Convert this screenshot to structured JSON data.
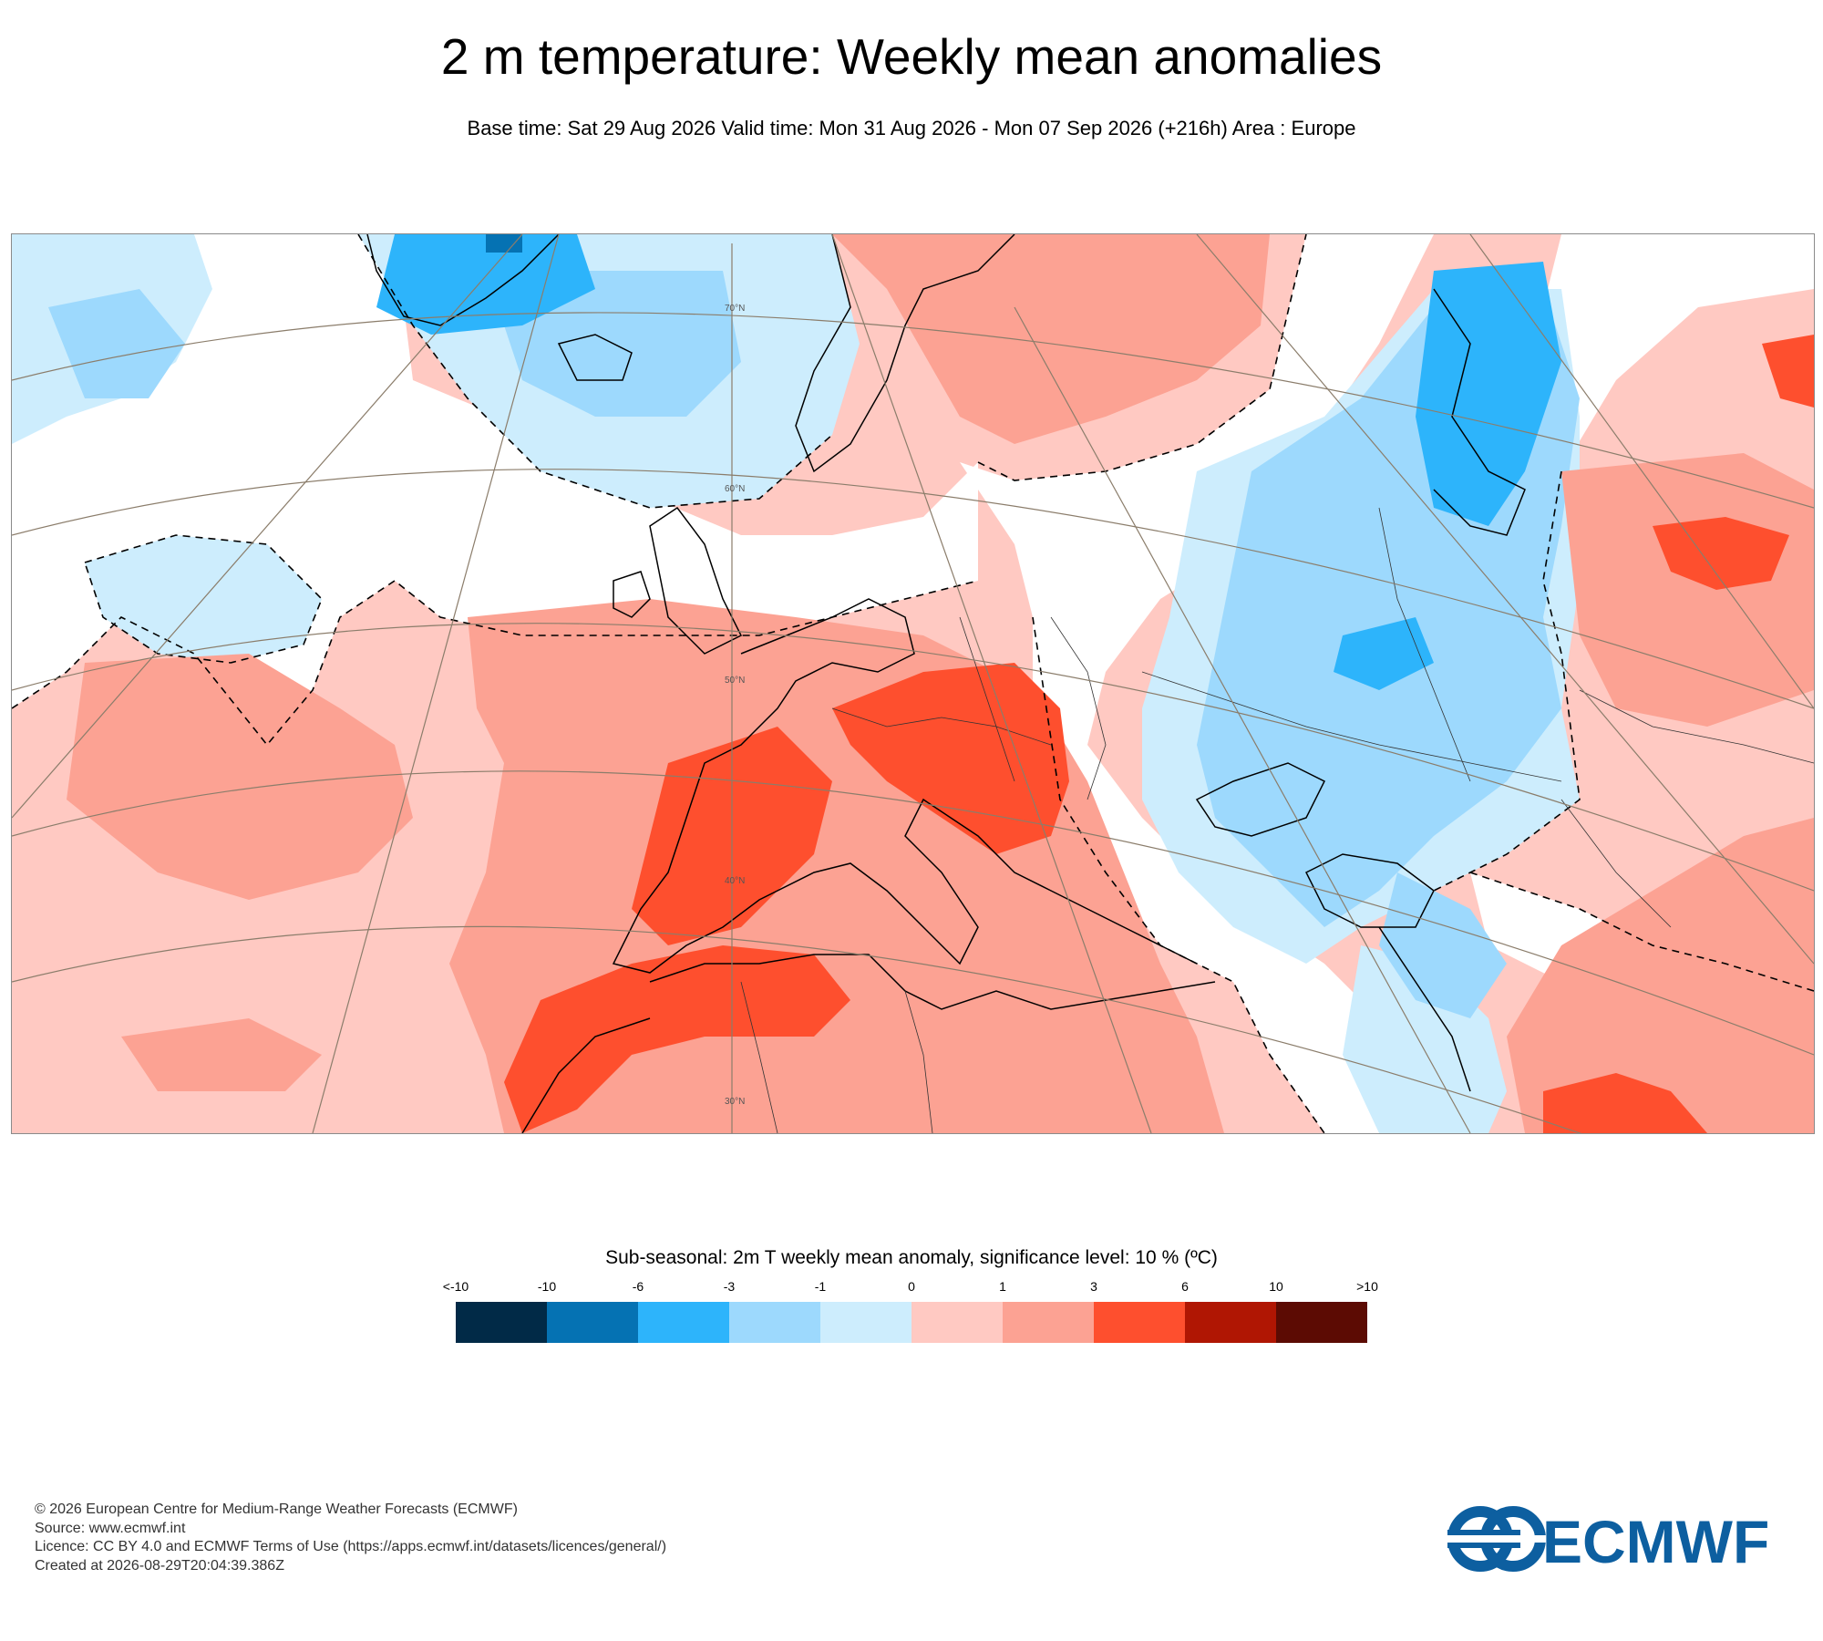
{
  "title": "2 m temperature: Weekly mean anomalies",
  "subtitle": "Base time: Sat 29 Aug 2026 Valid time: Mon 31 Aug 2026 - Mon 07 Sep 2026 (+216h) Area : Europe",
  "map": {
    "area": "Europe",
    "latitude_labels": [
      "70°N",
      "60°N",
      "50°N",
      "40°N",
      "30°N"
    ]
  },
  "legend": {
    "title": "Sub-seasonal: 2m T weekly mean anomaly, significance level: 10 % (ºC)",
    "ticks": [
      "<-10",
      "-10",
      "-6",
      "-3",
      "-1",
      "0",
      "1",
      "3",
      "6",
      "10",
      ">10"
    ],
    "colors": [
      "#012a47",
      "#0572b3",
      "#2db4fb",
      "#9dd9fd",
      "#cdedfd",
      "#ffc9c2",
      "#fca293",
      "#fe4f2e",
      "#b01603",
      "#5c0b03"
    ]
  },
  "footer": {
    "copyright": "© 2026 European Centre for Medium-Range Weather Forecasts (ECMWF)",
    "source": "Source: www.ecmwf.int",
    "licence": "Licence: CC BY 4.0 and ECMWF Terms of Use (https://apps.ecmwf.int/datasets/licences/general/)",
    "created": "Created at 2026-08-29T20:04:39.386Z"
  },
  "logo": {
    "text": "ECMWF",
    "color": "#0d5fa0"
  }
}
